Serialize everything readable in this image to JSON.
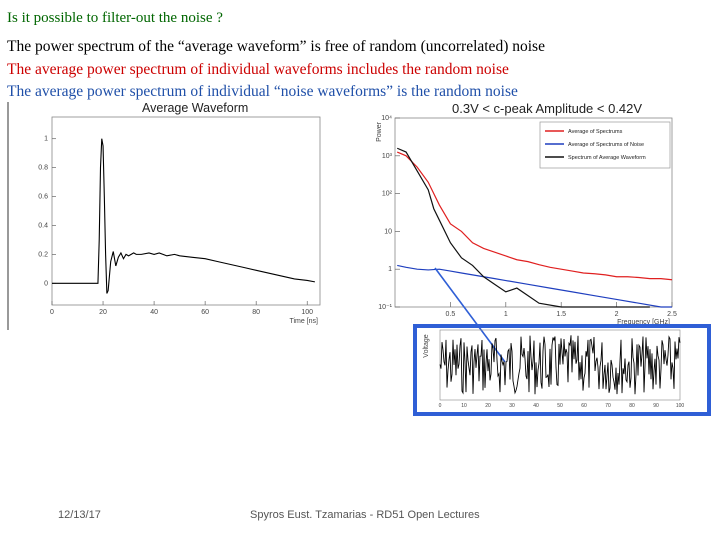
{
  "slide": {
    "question": "Is it possible to filter-out the noise ?",
    "line1": "The power spectrum of the “average waveform” is free of random (uncorrelated) noise",
    "line2": "The average power spectrum of individual waveforms includes the random noise",
    "line3": "The average power spectrum of individual “noise waveforms” is the random noise",
    "colors": {
      "question": "#006600",
      "line1": "#000000",
      "line2": "#cc0000",
      "line3": "#1f4fa8",
      "inset_border": "#2f5fd6"
    }
  },
  "footer": {
    "date": "12/13/17",
    "credit": "Spyros Eust. Tzamarias - RD51 Open Lectures"
  },
  "chart_data": [
    {
      "type": "line",
      "title": "Average Waveform",
      "xlabel": "Time [ns]",
      "ylabel": "",
      "xlim": [
        0,
        105
      ],
      "ylim": [
        -0.15,
        1.15
      ],
      "xticks": [
        "0",
        "20",
        "40",
        "60",
        "80",
        "100"
      ],
      "yticks": [
        "0",
        "0.2",
        "0.4",
        "0.6",
        "0.8",
        "1"
      ],
      "series": [
        {
          "color": "#000000",
          "x": [
            0,
            18,
            18.5,
            19,
            19.5,
            20,
            20.5,
            21,
            21.5,
            22,
            23,
            24,
            25,
            26,
            27,
            28,
            29,
            30,
            31,
            32,
            33,
            35,
            38,
            40,
            42,
            45,
            48,
            50,
            55,
            60,
            65,
            70,
            75,
            80,
            85,
            90,
            95,
            100,
            103
          ],
          "y": [
            0,
            0,
            0.3,
            0.8,
            1.0,
            0.95,
            0.6,
            0.2,
            -0.07,
            -0.05,
            0.15,
            0.22,
            0.12,
            0.18,
            0.21,
            0.17,
            0.2,
            0.19,
            0.2,
            0.21,
            0.2,
            0.2,
            0.21,
            0.2,
            0.21,
            0.19,
            0.2,
            0.19,
            0.18,
            0.17,
            0.15,
            0.13,
            0.11,
            0.09,
            0.07,
            0.05,
            0.03,
            0.02,
            0.01
          ]
        }
      ]
    },
    {
      "type": "line",
      "title": "0.3V < c-peak Amplitude < 0.42V",
      "xlabel": "Frequency [GHz]",
      "ylabel": "Power",
      "xlim": [
        0,
        2.5
      ],
      "ylim_log10": [
        -1,
        4
      ],
      "xticks": [
        "0.5",
        "1",
        "1.5",
        "2",
        "2.5"
      ],
      "yticks": [
        "10",
        "1",
        "10²",
        "10³",
        "10⁴",
        "10⁻¹"
      ],
      "legend_position": "top-right",
      "series": [
        {
          "name": "Average of Spectrums",
          "color": "#e02020",
          "x": [
            0.02,
            0.1,
            0.2,
            0.3,
            0.4,
            0.5,
            0.6,
            0.7,
            0.8,
            0.9,
            1.0,
            1.1,
            1.2,
            1.3,
            1.4,
            1.5,
            1.6,
            1.7,
            1.8,
            1.9,
            2.0,
            2.1,
            2.2,
            2.3,
            2.4,
            2.5
          ],
          "log10y": [
            3.1,
            3.0,
            2.7,
            2.3,
            1.7,
            1.2,
            1.0,
            0.7,
            0.55,
            0.45,
            0.35,
            0.25,
            0.2,
            0.12,
            0.05,
            0.0,
            -0.05,
            -0.1,
            -0.12,
            -0.15,
            -0.2,
            -0.2,
            -0.22,
            -0.25,
            -0.25,
            -0.28
          ]
        },
        {
          "name": "Average of Spectrums of Noise",
          "color": "#1f3fbf",
          "x": [
            0.02,
            0.1,
            0.2,
            0.3,
            0.4,
            0.5,
            0.6,
            0.7,
            0.8,
            0.9,
            1.0,
            1.2,
            1.4,
            1.6,
            1.8,
            2.0,
            2.2,
            2.4,
            2.5
          ],
          "log10y": [
            0.1,
            0.05,
            0.0,
            -0.02,
            0.0,
            -0.05,
            -0.1,
            -0.15,
            -0.2,
            -0.25,
            -0.3,
            -0.4,
            -0.5,
            -0.6,
            -0.7,
            -0.8,
            -0.9,
            -1.0,
            -1.0
          ]
        },
        {
          "name": "Spectrum of Average Waveform",
          "color": "#111111",
          "x": [
            0.02,
            0.1,
            0.2,
            0.3,
            0.35,
            0.4,
            0.5,
            0.6,
            0.7,
            0.8,
            0.9,
            1.0,
            1.1,
            1.2,
            1.3,
            1.5,
            1.7,
            2.0,
            2.3
          ],
          "log10y": [
            3.2,
            3.1,
            2.6,
            2.1,
            1.6,
            1.3,
            0.7,
            0.3,
            0.1,
            -0.2,
            -0.4,
            -0.6,
            -0.5,
            -0.7,
            -0.9,
            -1.2,
            -1.6,
            -2.0,
            -2.3
          ]
        }
      ]
    },
    {
      "type": "line",
      "title": "",
      "xlabel": "",
      "ylabel": "Voltage",
      "xlim": [
        0,
        100
      ],
      "ylim": [
        -1,
        1
      ],
      "xticks": [
        "0",
        "10",
        "20",
        "30",
        "40",
        "50",
        "60",
        "70",
        "80",
        "90",
        "100"
      ],
      "yticks": [],
      "series": [
        {
          "color": "#000000",
          "random_noise": true
        }
      ]
    }
  ]
}
